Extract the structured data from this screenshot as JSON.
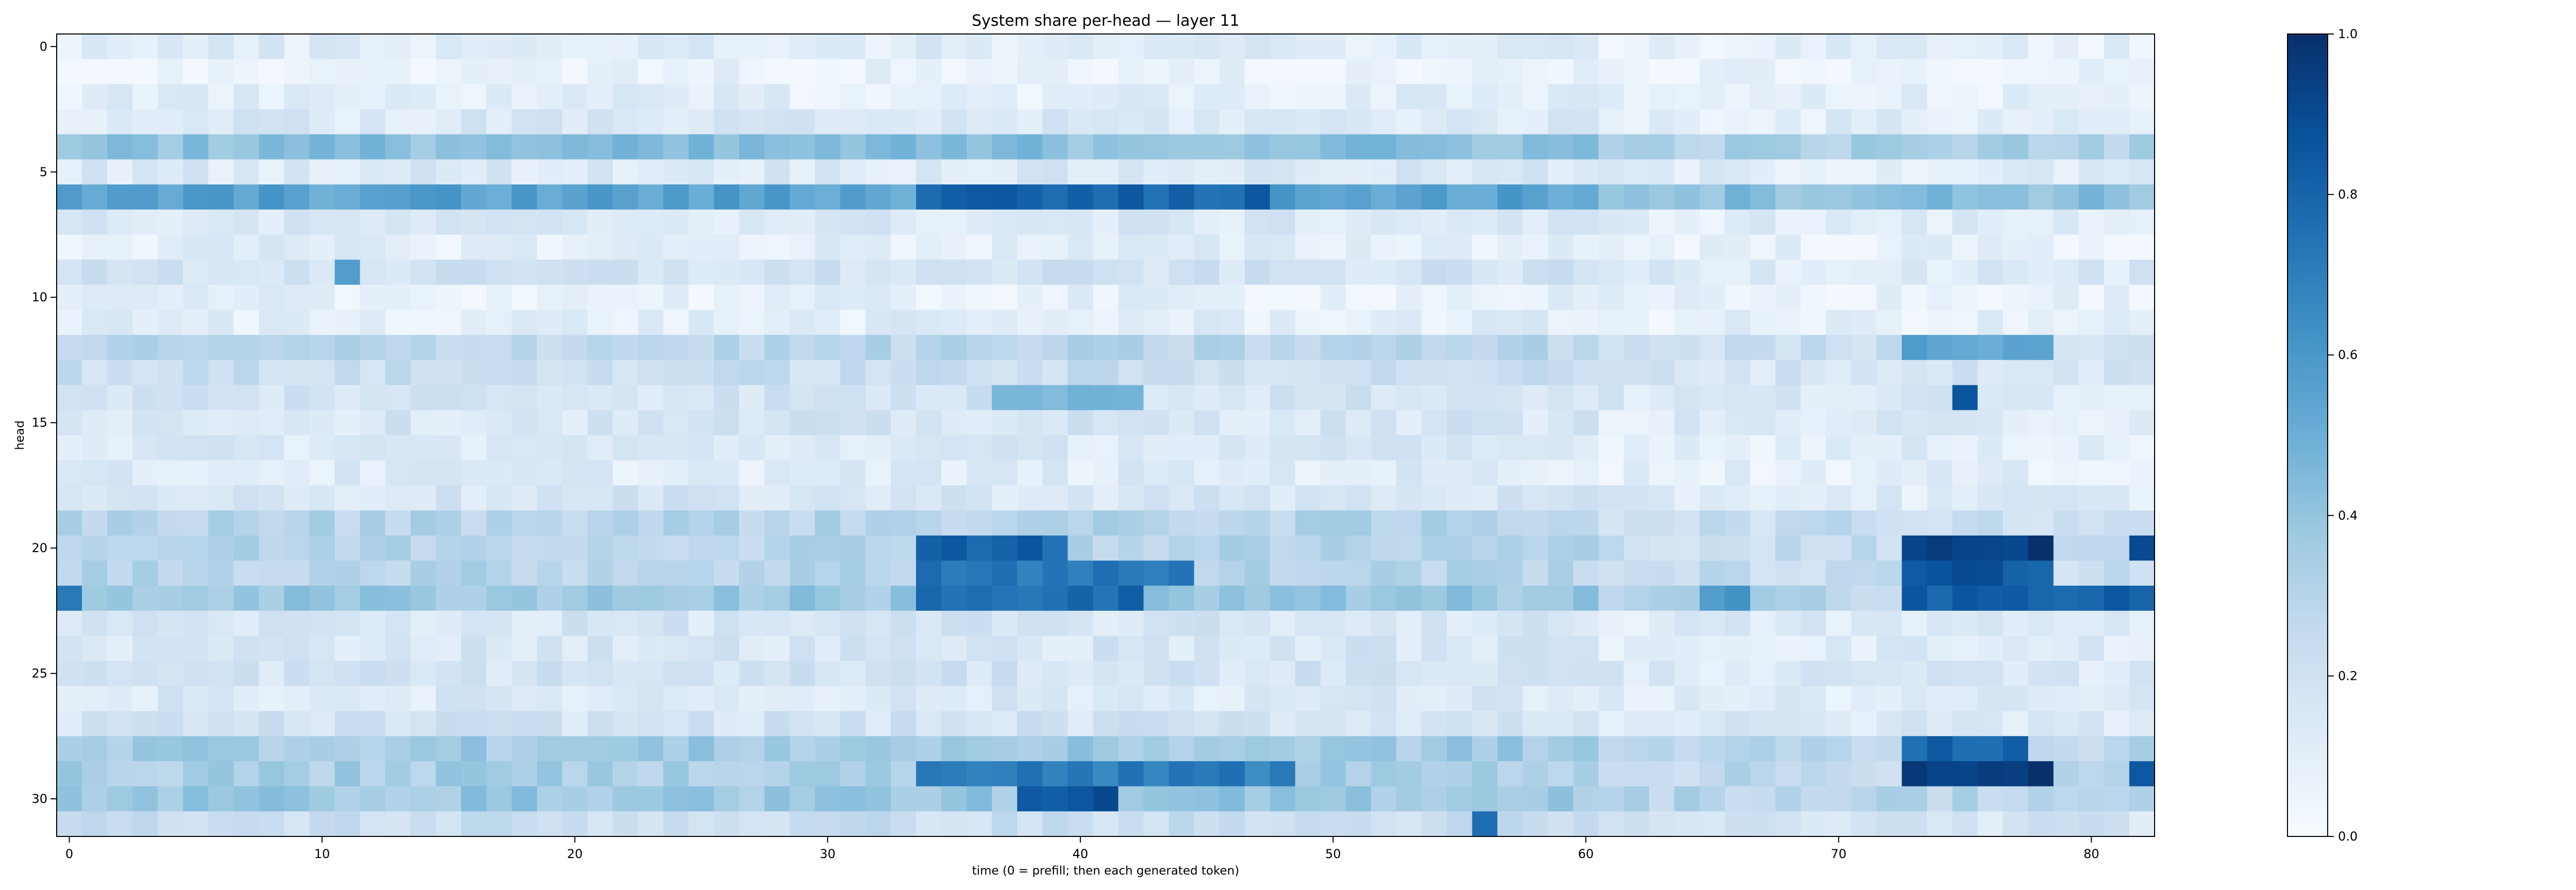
{
  "chart_data": {
    "type": "heatmap",
    "title": "System share per-head — layer 11",
    "xlabel": "time (0 = prefill; then each generated token)",
    "ylabel": "head",
    "x_ticks": [
      0,
      10,
      20,
      30,
      40,
      50,
      60,
      70,
      80
    ],
    "y_ticks": [
      0,
      5,
      10,
      15,
      20,
      25,
      30
    ],
    "xlim": [
      -0.5,
      82.5
    ],
    "ylim": [
      31.5,
      -0.5
    ],
    "n_cols": 83,
    "n_rows": 32,
    "colormap": "Blues",
    "colorbar": {
      "vmin": 0.0,
      "vmax": 1.0,
      "ticks": [
        "0.0",
        "0.2",
        "0.4",
        "0.6",
        "0.8",
        "1.0"
      ]
    },
    "row_profiles": [
      {
        "head": 0,
        "base": 0.12
      },
      {
        "head": 1,
        "base": 0.06
      },
      {
        "head": 2,
        "base": 0.1
      },
      {
        "head": 3,
        "base": 0.14
      },
      {
        "head": 4,
        "base": 0.42
      },
      {
        "head": 5,
        "base": 0.14
      },
      {
        "head": 6,
        "base": 0.55
      },
      {
        "head": 7,
        "base": 0.14
      },
      {
        "head": 8,
        "base": 0.1
      },
      {
        "head": 9,
        "base": 0.18
      },
      {
        "head": 10,
        "base": 0.08
      },
      {
        "head": 11,
        "base": 0.1
      },
      {
        "head": 12,
        "base": 0.28
      },
      {
        "head": 13,
        "base": 0.22
      },
      {
        "head": 14,
        "base": 0.18
      },
      {
        "head": 15,
        "base": 0.16
      },
      {
        "head": 16,
        "base": 0.14
      },
      {
        "head": 17,
        "base": 0.12
      },
      {
        "head": 18,
        "base": 0.16
      },
      {
        "head": 19,
        "base": 0.3
      },
      {
        "head": 20,
        "base": 0.3
      },
      {
        "head": 21,
        "base": 0.3
      },
      {
        "head": 22,
        "base": 0.38
      },
      {
        "head": 23,
        "base": 0.16
      },
      {
        "head": 24,
        "base": 0.16
      },
      {
        "head": 25,
        "base": 0.18
      },
      {
        "head": 26,
        "base": 0.14
      },
      {
        "head": 27,
        "base": 0.18
      },
      {
        "head": 28,
        "base": 0.36
      },
      {
        "head": 29,
        "base": 0.34
      },
      {
        "head": 30,
        "base": 0.38
      },
      {
        "head": 31,
        "base": 0.22
      }
    ],
    "hotspots": [
      {
        "head": 6,
        "t_start": 34,
        "t_end": 46,
        "value": 0.8
      },
      {
        "head": 6,
        "t_start": 47,
        "t_end": 47,
        "value": 0.9
      },
      {
        "head": 9,
        "t_start": 11,
        "t_end": 11,
        "value": 0.55
      },
      {
        "head": 12,
        "t_start": 73,
        "t_end": 78,
        "value": 0.55
      },
      {
        "head": 14,
        "t_start": 75,
        "t_end": 75,
        "value": 0.9
      },
      {
        "head": 14,
        "t_start": 37,
        "t_end": 42,
        "value": 0.5
      },
      {
        "head": 20,
        "t_start": 34,
        "t_end": 39,
        "value": 0.8
      },
      {
        "head": 20,
        "t_start": 73,
        "t_end": 78,
        "value": 0.95
      },
      {
        "head": 20,
        "t_start": 82,
        "t_end": 82,
        "value": 0.95
      },
      {
        "head": 21,
        "t_start": 34,
        "t_end": 44,
        "value": 0.72
      },
      {
        "head": 21,
        "t_start": 73,
        "t_end": 78,
        "value": 0.85
      },
      {
        "head": 22,
        "t_start": 0,
        "t_end": 0,
        "value": 0.78
      },
      {
        "head": 22,
        "t_start": 34,
        "t_end": 42,
        "value": 0.78
      },
      {
        "head": 22,
        "t_start": 65,
        "t_end": 66,
        "value": 0.6
      },
      {
        "head": 22,
        "t_start": 73,
        "t_end": 82,
        "value": 0.8
      },
      {
        "head": 28,
        "t_start": 73,
        "t_end": 77,
        "value": 0.8
      },
      {
        "head": 29,
        "t_start": 34,
        "t_end": 48,
        "value": 0.7
      },
      {
        "head": 29,
        "t_start": 73,
        "t_end": 78,
        "value": 0.95
      },
      {
        "head": 29,
        "t_start": 82,
        "t_end": 82,
        "value": 0.9
      },
      {
        "head": 30,
        "t_start": 38,
        "t_end": 41,
        "value": 0.85
      },
      {
        "head": 31,
        "t_start": 56,
        "t_end": 56,
        "value": 0.75
      }
    ]
  }
}
